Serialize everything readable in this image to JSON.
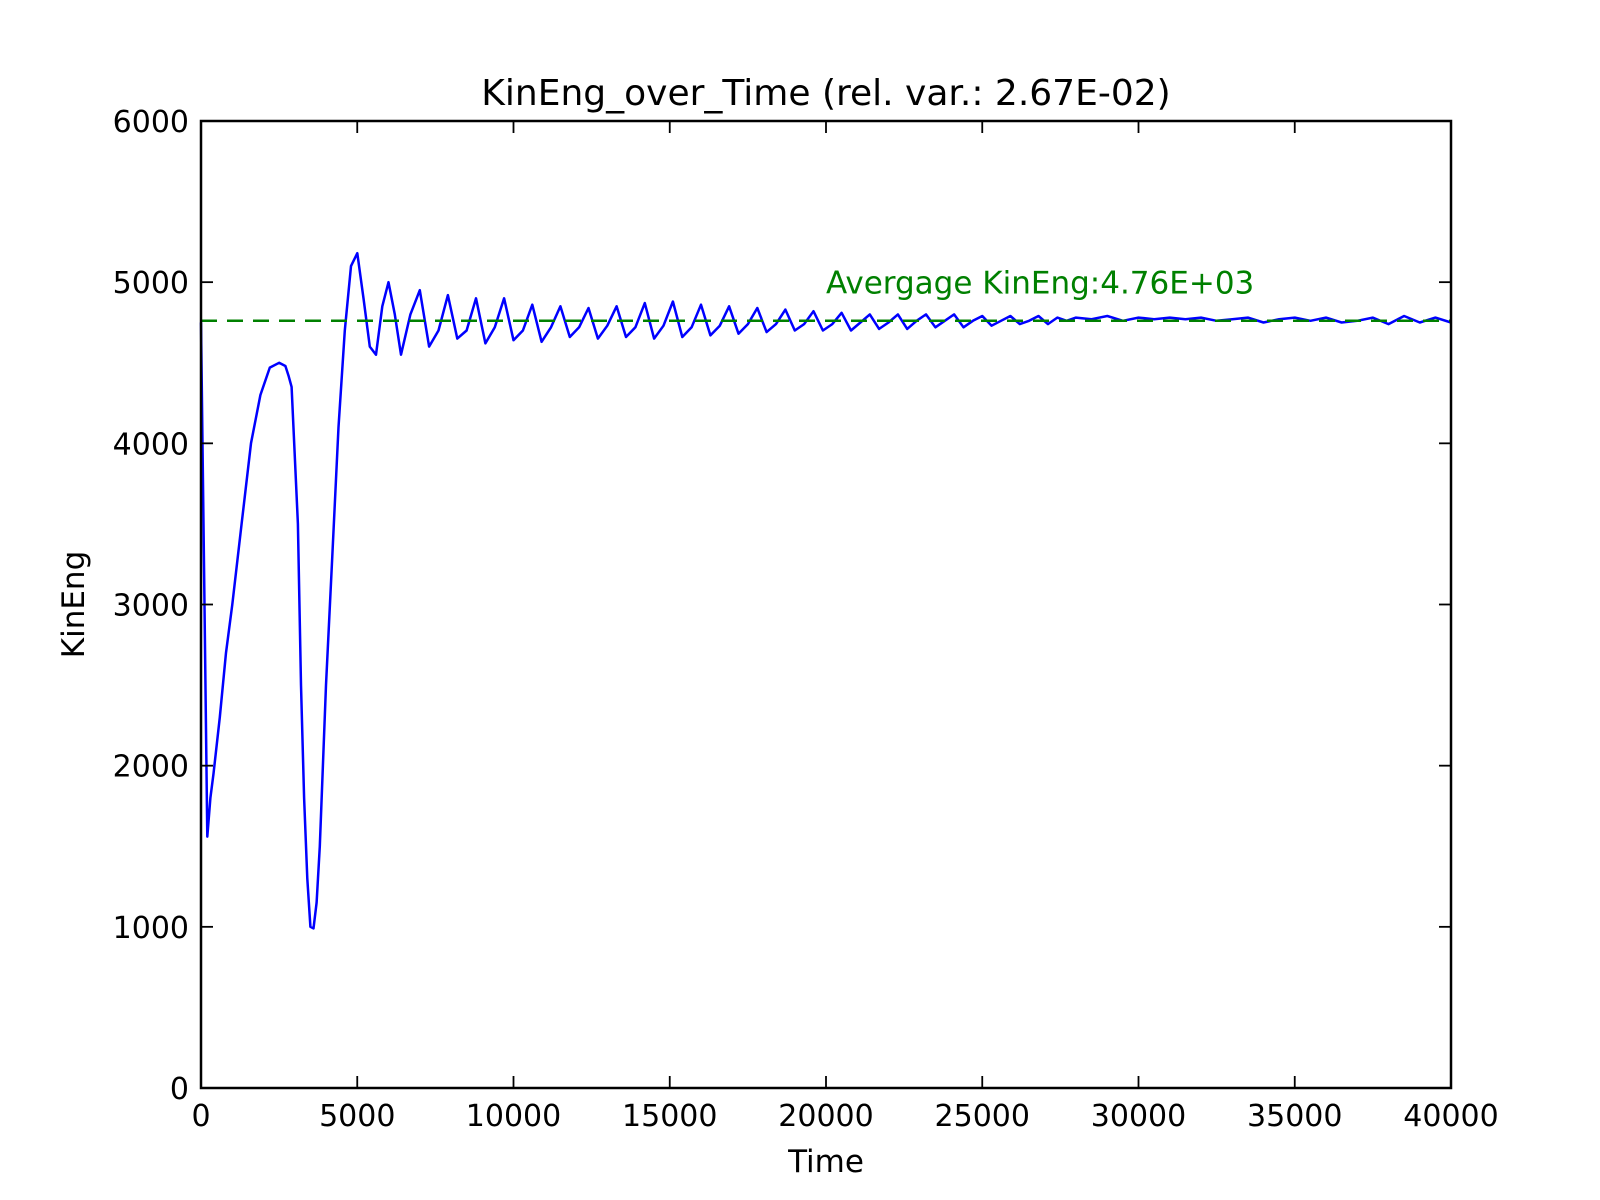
{
  "chart_data": {
    "type": "line",
    "title": "KinEng_over_Time (rel. var.: 2.67E-02)",
    "xlabel": "Time",
    "ylabel": "KinEng",
    "xlim": [
      0,
      40000
    ],
    "ylim": [
      0,
      6000
    ],
    "xticks": [
      0,
      5000,
      10000,
      15000,
      20000,
      25000,
      30000,
      35000,
      40000
    ],
    "yticks": [
      0,
      1000,
      2000,
      3000,
      4000,
      5000,
      6000
    ],
    "grid": false,
    "legend": "none",
    "series": [
      {
        "color": "#0000ff",
        "style": "solid",
        "x": [
          0,
          100,
          200,
          300,
          400,
          600,
          800,
          1000,
          1300,
          1600,
          1900,
          2200,
          2500,
          2700,
          2800,
          2900,
          3100,
          3200,
          3300,
          3400,
          3500,
          3600,
          3700,
          3800,
          3900,
          4000,
          4200,
          4400,
          4600,
          4800,
          5000,
          5200,
          5400,
          5600,
          5800,
          6000,
          6200,
          6400,
          6700,
          7000,
          7300,
          7600,
          7900,
          8200,
          8500,
          8800,
          9100,
          9400,
          9700,
          10000,
          10300,
          10600,
          10900,
          11200,
          11500,
          11800,
          12100,
          12400,
          12700,
          13000,
          13300,
          13600,
          13900,
          14200,
          14500,
          14800,
          15100,
          15400,
          15700,
          16000,
          16300,
          16600,
          16900,
          17200,
          17500,
          17800,
          18100,
          18400,
          18700,
          19000,
          19300,
          19600,
          19900,
          20200,
          20500,
          20800,
          21100,
          21400,
          21700,
          22000,
          22300,
          22600,
          22900,
          23200,
          23500,
          23800,
          24100,
          24400,
          24700,
          25000,
          25300,
          25600,
          25900,
          26200,
          26500,
          26800,
          27100,
          27400,
          27700,
          28000,
          28500,
          29000,
          29500,
          30000,
          30500,
          31000,
          31500,
          32000,
          32500,
          33000,
          33500,
          34000,
          34500,
          35000,
          35500,
          36000,
          36500,
          37000,
          37500,
          38000,
          38500,
          39000,
          39500,
          40000
        ],
        "y": [
          4750,
          3200,
          1560,
          1800,
          1950,
          2300,
          2700,
          3000,
          3500,
          4000,
          4300,
          4470,
          4500,
          4480,
          4420,
          4350,
          3500,
          2500,
          1800,
          1300,
          1000,
          990,
          1150,
          1500,
          2000,
          2500,
          3300,
          4100,
          4700,
          5100,
          5180,
          4900,
          4600,
          4550,
          4850,
          5000,
          4800,
          4550,
          4800,
          4950,
          4600,
          4700,
          4920,
          4650,
          4700,
          4900,
          4620,
          4720,
          4900,
          4640,
          4700,
          4860,
          4630,
          4720,
          4850,
          4660,
          4720,
          4840,
          4650,
          4730,
          4850,
          4660,
          4720,
          4870,
          4650,
          4730,
          4880,
          4660,
          4720,
          4860,
          4670,
          4730,
          4850,
          4680,
          4740,
          4840,
          4690,
          4740,
          4830,
          4700,
          4740,
          4820,
          4700,
          4740,
          4810,
          4700,
          4750,
          4800,
          4710,
          4750,
          4800,
          4710,
          4760,
          4800,
          4720,
          4760,
          4800,
          4720,
          4760,
          4790,
          4730,
          4760,
          4790,
          4740,
          4760,
          4790,
          4740,
          4780,
          4760,
          4780,
          4770,
          4790,
          4760,
          4780,
          4770,
          4780,
          4770,
          4780,
          4760,
          4770,
          4780,
          4750,
          4770,
          4780,
          4760,
          4780,
          4750,
          4760,
          4780,
          4740,
          4790,
          4750,
          4780,
          4750
        ]
      },
      {
        "color": "#008000",
        "style": "dashed",
        "x": [
          0,
          40000
        ],
        "y": [
          4760,
          4760
        ]
      }
    ],
    "annotations": [
      {
        "text": "Avergage KinEng:4.76E+03",
        "x": 20000,
        "y": 4930,
        "color": "#008000"
      }
    ]
  }
}
